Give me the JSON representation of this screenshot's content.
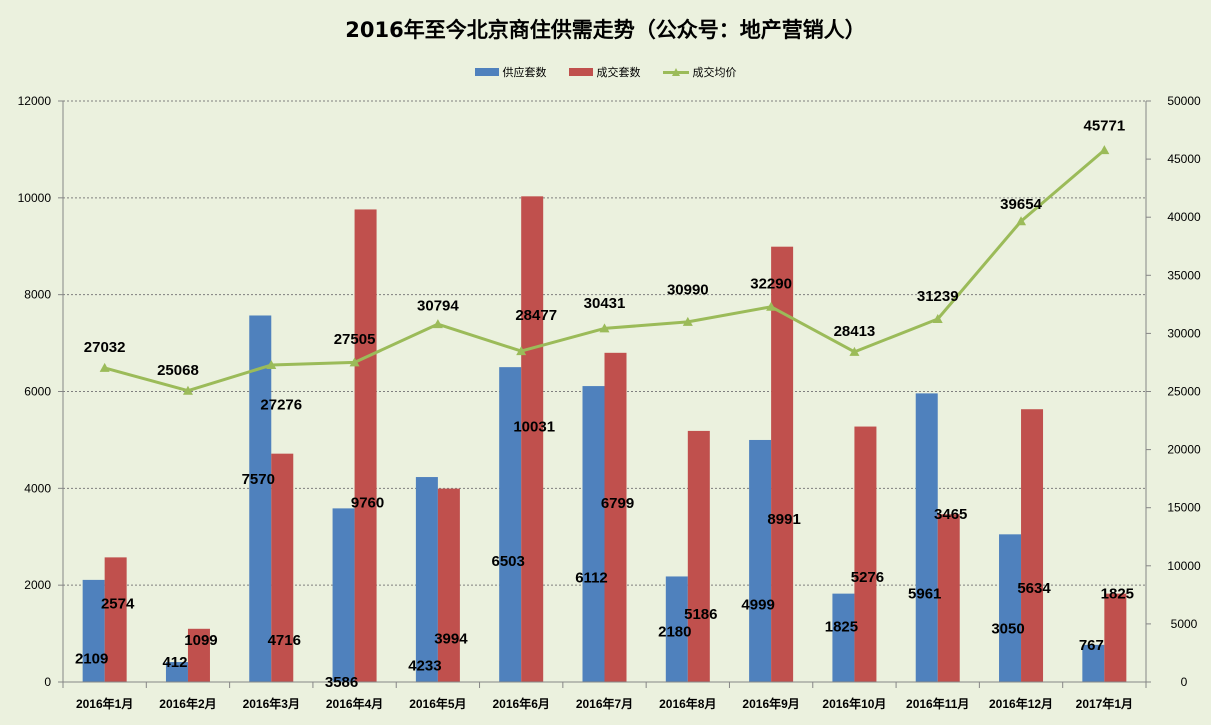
{
  "chart_data": {
    "type": "bar",
    "title": "2016年至今北京商住供需走势（公众号：地产营销人）",
    "categories": [
      "2016年1月",
      "2016年2月",
      "2016年3月",
      "2016年4月",
      "2016年5月",
      "2016年6月",
      "2016年7月",
      "2016年8月",
      "2016年9月",
      "2016年10月",
      "2016年11月",
      "2016年12月",
      "2017年1月"
    ],
    "series": [
      {
        "name": "供应套数",
        "type": "bar",
        "axis": "left",
        "color": "#4f81bd",
        "values": [
          2109,
          412,
          7570,
          3586,
          4233,
          6503,
          6112,
          2180,
          4999,
          1825,
          5961,
          3050,
          767
        ]
      },
      {
        "name": "成交套数",
        "type": "bar",
        "axis": "left",
        "color": "#c0504d",
        "values": [
          2574,
          1099,
          4716,
          9760,
          3994,
          10031,
          6799,
          5186,
          8991,
          5276,
          3465,
          5634,
          1825
        ]
      },
      {
        "name": "成交均价",
        "type": "line",
        "axis": "right",
        "color": "#9bbb59",
        "marker": "triangle",
        "values": [
          27032,
          25068,
          27276,
          27505,
          30794,
          28477,
          30431,
          30990,
          32290,
          28413,
          31239,
          39654,
          45771
        ]
      }
    ],
    "ylim": [
      0,
      12000
    ],
    "yticks": [
      0,
      2000,
      4000,
      6000,
      8000,
      10000,
      12000
    ],
    "y2lim": [
      0,
      50000
    ],
    "y2ticks": [
      0,
      5000,
      10000,
      15000,
      20000,
      25000,
      30000,
      35000,
      40000,
      45000,
      50000
    ],
    "grid": true,
    "legend_position": "top-center",
    "xlabel": "",
    "ylabel": "",
    "y2label": ""
  }
}
